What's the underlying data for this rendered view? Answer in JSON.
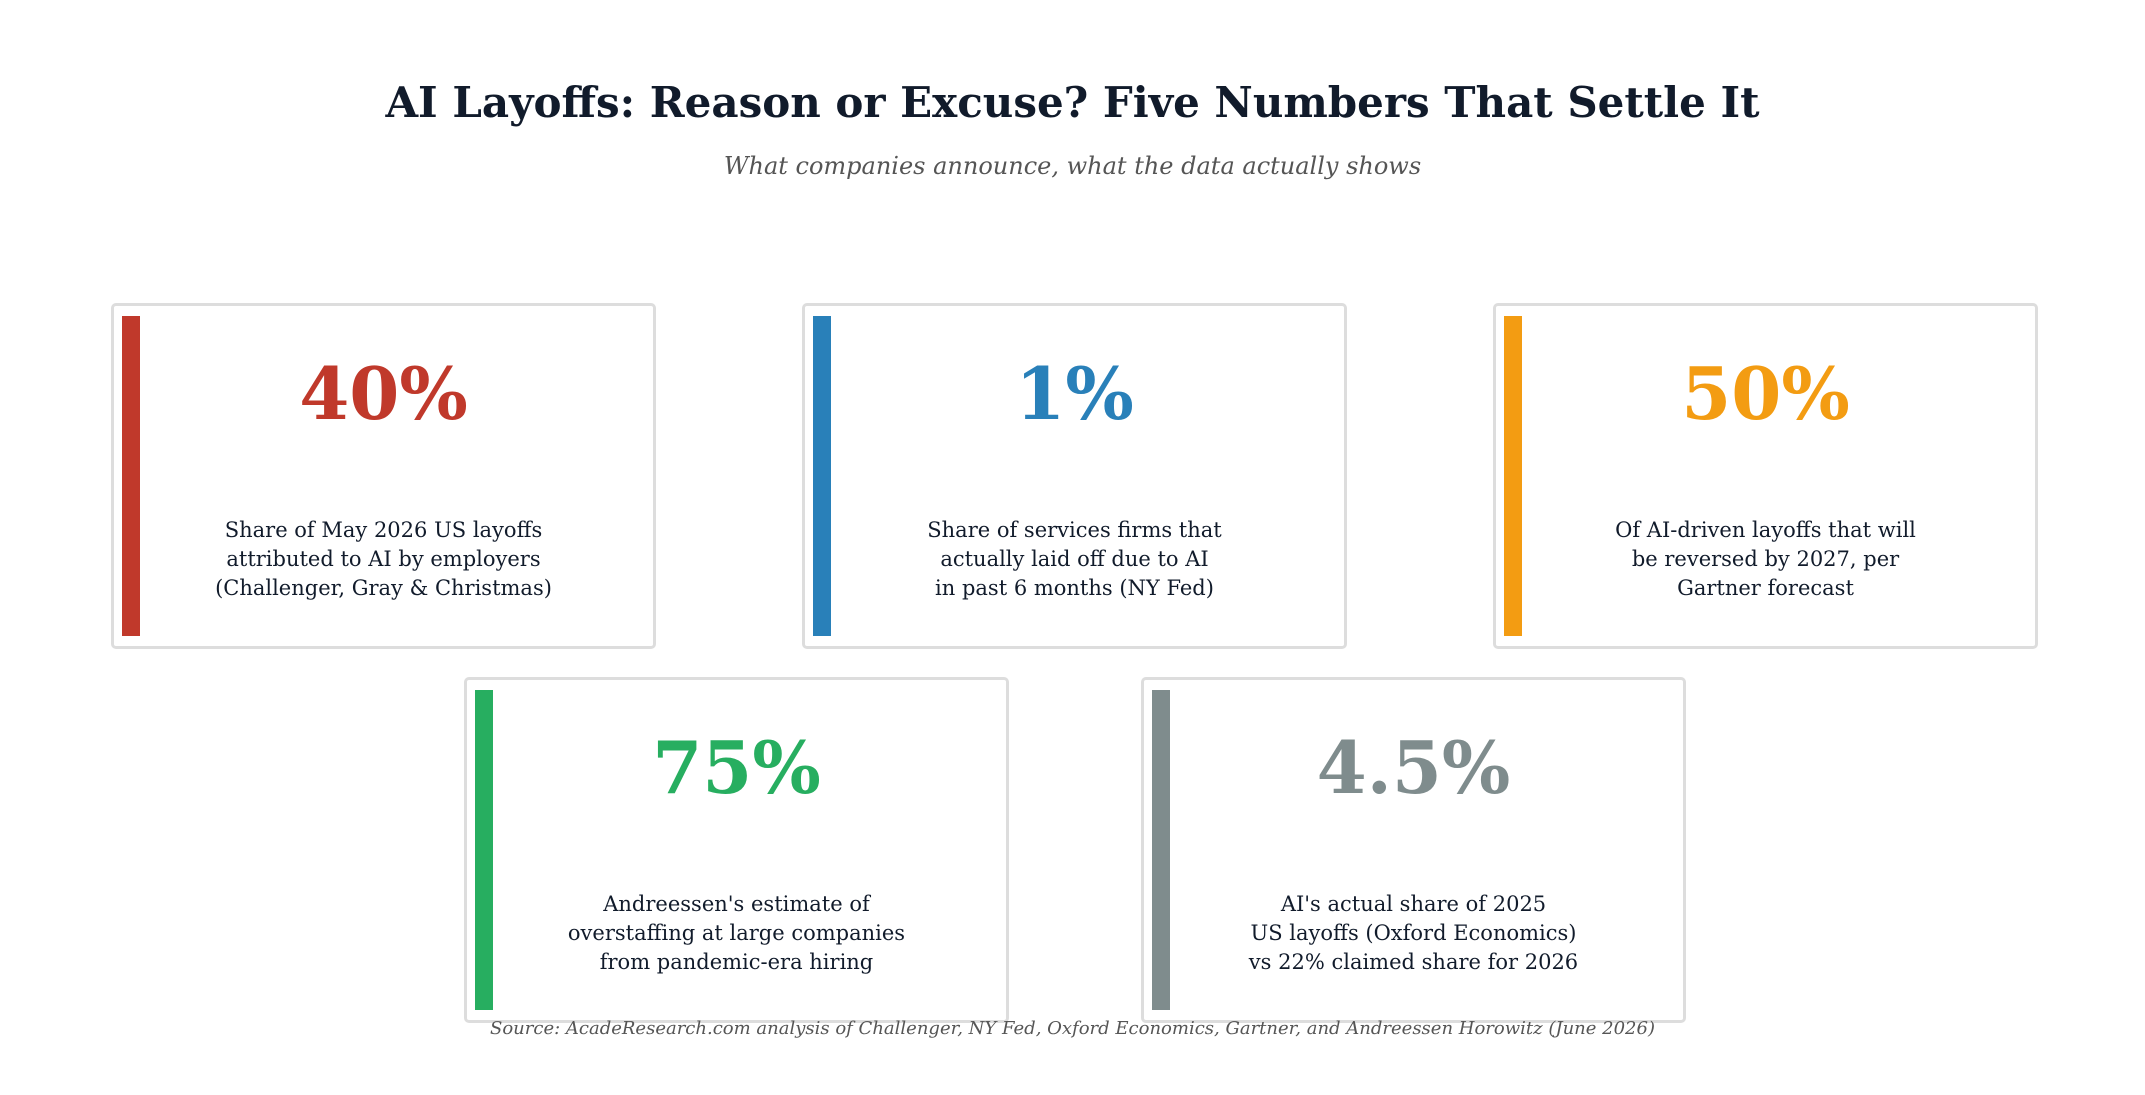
{
  "header": {
    "title": "AI Layoffs: Reason or Excuse? Five Numbers That Settle It",
    "subtitle": "What companies announce, what the data actually shows"
  },
  "cards": [
    {
      "value": "40%",
      "color": "#c0392b",
      "lines": [
        "Share of May 2026 US layoffs",
        "attributed to AI by employers",
        "(Challenger, Gray & Christmas)"
      ]
    },
    {
      "value": "1%",
      "color": "#2980b9",
      "lines": [
        "Share of services firms that",
        "actually laid off due to AI",
        "in past 6 months (NY Fed)"
      ]
    },
    {
      "value": "50%",
      "color": "#f39c12",
      "lines": [
        "Of AI-driven layoffs that will",
        "be reversed by 2027, per",
        "Gartner forecast"
      ]
    },
    {
      "value": "75%",
      "color": "#27ae60",
      "lines": [
        "Andreessen's estimate of",
        "overstaffing at large companies",
        "from pandemic-era hiring"
      ]
    },
    {
      "value": "4.5%",
      "color": "#7f8c8d",
      "lines": [
        "AI's actual share of 2025",
        "US layoffs (Oxford Economics)",
        "vs 22% claimed share for 2026"
      ]
    }
  ],
  "footer": {
    "source": "Source: AcadeResearch.com analysis of Challenger, NY Fed, Oxford Economics, Gartner, and Andreessen Horowitz (June 2026)"
  }
}
